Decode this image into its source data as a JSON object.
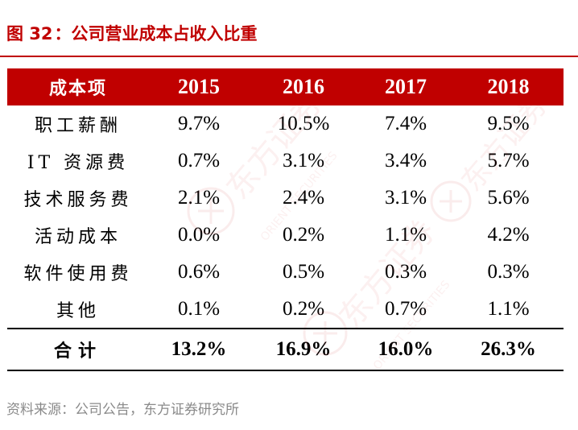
{
  "title": {
    "figure_label": "图 32",
    "separator": "：",
    "text": "公司营业成本占收入比重"
  },
  "table": {
    "headers": [
      "成本项",
      "2015",
      "2016",
      "2017",
      "2018"
    ],
    "rows": [
      {
        "label": "职工薪酬",
        "values": [
          "9.7%",
          "10.5%",
          "7.4%",
          "9.5%"
        ]
      },
      {
        "label": "IT 资源费",
        "values": [
          "0.7%",
          "3.1%",
          "3.4%",
          "5.7%"
        ]
      },
      {
        "label": "技术服务费",
        "values": [
          "2.1%",
          "2.4%",
          "3.1%",
          "5.6%"
        ]
      },
      {
        "label": "活动成本",
        "values": [
          "0.0%",
          "0.2%",
          "1.1%",
          "4.2%"
        ]
      },
      {
        "label": "软件使用费",
        "values": [
          "0.6%",
          "0.5%",
          "0.3%",
          "0.3%"
        ]
      },
      {
        "label": "其他",
        "values": [
          "0.1%",
          "0.2%",
          "0.7%",
          "1.1%"
        ]
      }
    ],
    "total": {
      "label": "合计",
      "values": [
        "13.2%",
        "16.9%",
        "16.0%",
        "26.3%"
      ]
    }
  },
  "source": "资料来源：公司公告，东方证券研究所",
  "colors": {
    "accent": "#c00000",
    "header_text": "#ffffff",
    "source_text": "#8a8a8a"
  },
  "watermark": {
    "brand_cn": "东方证券",
    "brand_en": "ORIENT SECURITIES"
  }
}
